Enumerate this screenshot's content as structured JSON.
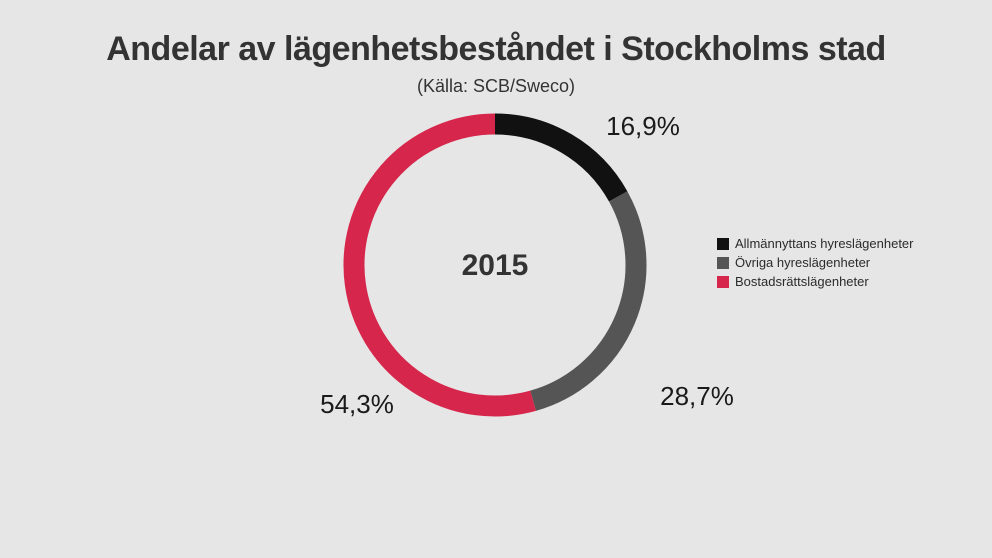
{
  "chart_data": {
    "type": "pie",
    "style": "donut",
    "title": "Andelar av lägenhetsbeståndet i Stockholms stad",
    "subtitle": "(Källa: SCB/Sweco)",
    "center_label": "2015",
    "legend_position": "right",
    "categories": [
      "Allmännyttans hyreslägenheter",
      "Övriga hyreslägenheter",
      "Bostadsrättslägenheter"
    ],
    "values": [
      16.9,
      28.7,
      54.3
    ],
    "value_labels": [
      "16,9%",
      "28,7%",
      "54,3%"
    ],
    "colors": [
      "#111111",
      "#555555",
      "#d6264b"
    ]
  }
}
